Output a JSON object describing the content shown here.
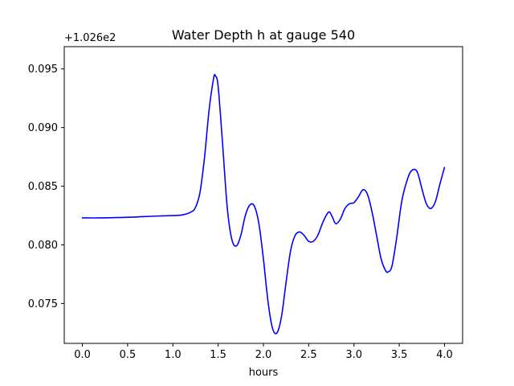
{
  "chart_data": {
    "type": "line",
    "title": "Water Depth h at gauge 540",
    "xlabel": "hours",
    "ylabel": "",
    "offset_text": "+1.026e2",
    "xlim": [
      -0.2,
      4.2
    ],
    "ylim": [
      0.0716,
      0.0969
    ],
    "xticks": [
      0.0,
      0.5,
      1.0,
      1.5,
      2.0,
      2.5,
      3.0,
      3.5,
      4.0
    ],
    "xtick_labels": [
      "0.0",
      "0.5",
      "1.0",
      "1.5",
      "2.0",
      "2.5",
      "3.0",
      "3.5",
      "4.0"
    ],
    "yticks": [
      0.075,
      0.08,
      0.085,
      0.09,
      0.095
    ],
    "ytick_labels": [
      "0.075",
      "0.080",
      "0.085",
      "0.090",
      "0.095"
    ],
    "grid": false,
    "line_color": "#0000ff",
    "series": [
      {
        "x": [
          0.0,
          0.2,
          0.5,
          0.8,
          1.0,
          1.1,
          1.2,
          1.25,
          1.3,
          1.35,
          1.4,
          1.45,
          1.47,
          1.5,
          1.55,
          1.6,
          1.65,
          1.7,
          1.75,
          1.8,
          1.85,
          1.9,
          1.95,
          2.0,
          2.05,
          2.1,
          2.15,
          2.2,
          2.25,
          2.3,
          2.35,
          2.4,
          2.45,
          2.5,
          2.55,
          2.6,
          2.65,
          2.7,
          2.73,
          2.76,
          2.8,
          2.85,
          2.9,
          2.95,
          3.0,
          3.05,
          3.1,
          3.15,
          3.2,
          3.25,
          3.3,
          3.35,
          3.38,
          3.42,
          3.47,
          3.53,
          3.6,
          3.65,
          3.7,
          3.75,
          3.8,
          3.85,
          3.9,
          3.95,
          4.0
        ],
        "y": [
          0.0823,
          0.0823,
          0.08235,
          0.08245,
          0.0825,
          0.08255,
          0.0828,
          0.0832,
          0.0845,
          0.0875,
          0.0915,
          0.0942,
          0.0944,
          0.0935,
          0.0885,
          0.0832,
          0.0805,
          0.0799,
          0.0808,
          0.0825,
          0.0834,
          0.0833,
          0.0818,
          0.0788,
          0.0752,
          0.0729,
          0.0725,
          0.0739,
          0.0768,
          0.0795,
          0.0808,
          0.0811,
          0.0808,
          0.0803,
          0.0803,
          0.0808,
          0.0818,
          0.0826,
          0.0828,
          0.0824,
          0.0818,
          0.0822,
          0.0831,
          0.0835,
          0.0836,
          0.0841,
          0.0847,
          0.0843,
          0.0828,
          0.0808,
          0.0788,
          0.0778,
          0.0777,
          0.0782,
          0.0805,
          0.0838,
          0.0858,
          0.0864,
          0.0862,
          0.0848,
          0.0835,
          0.0831,
          0.0837,
          0.0852,
          0.0866
        ]
      }
    ]
  }
}
